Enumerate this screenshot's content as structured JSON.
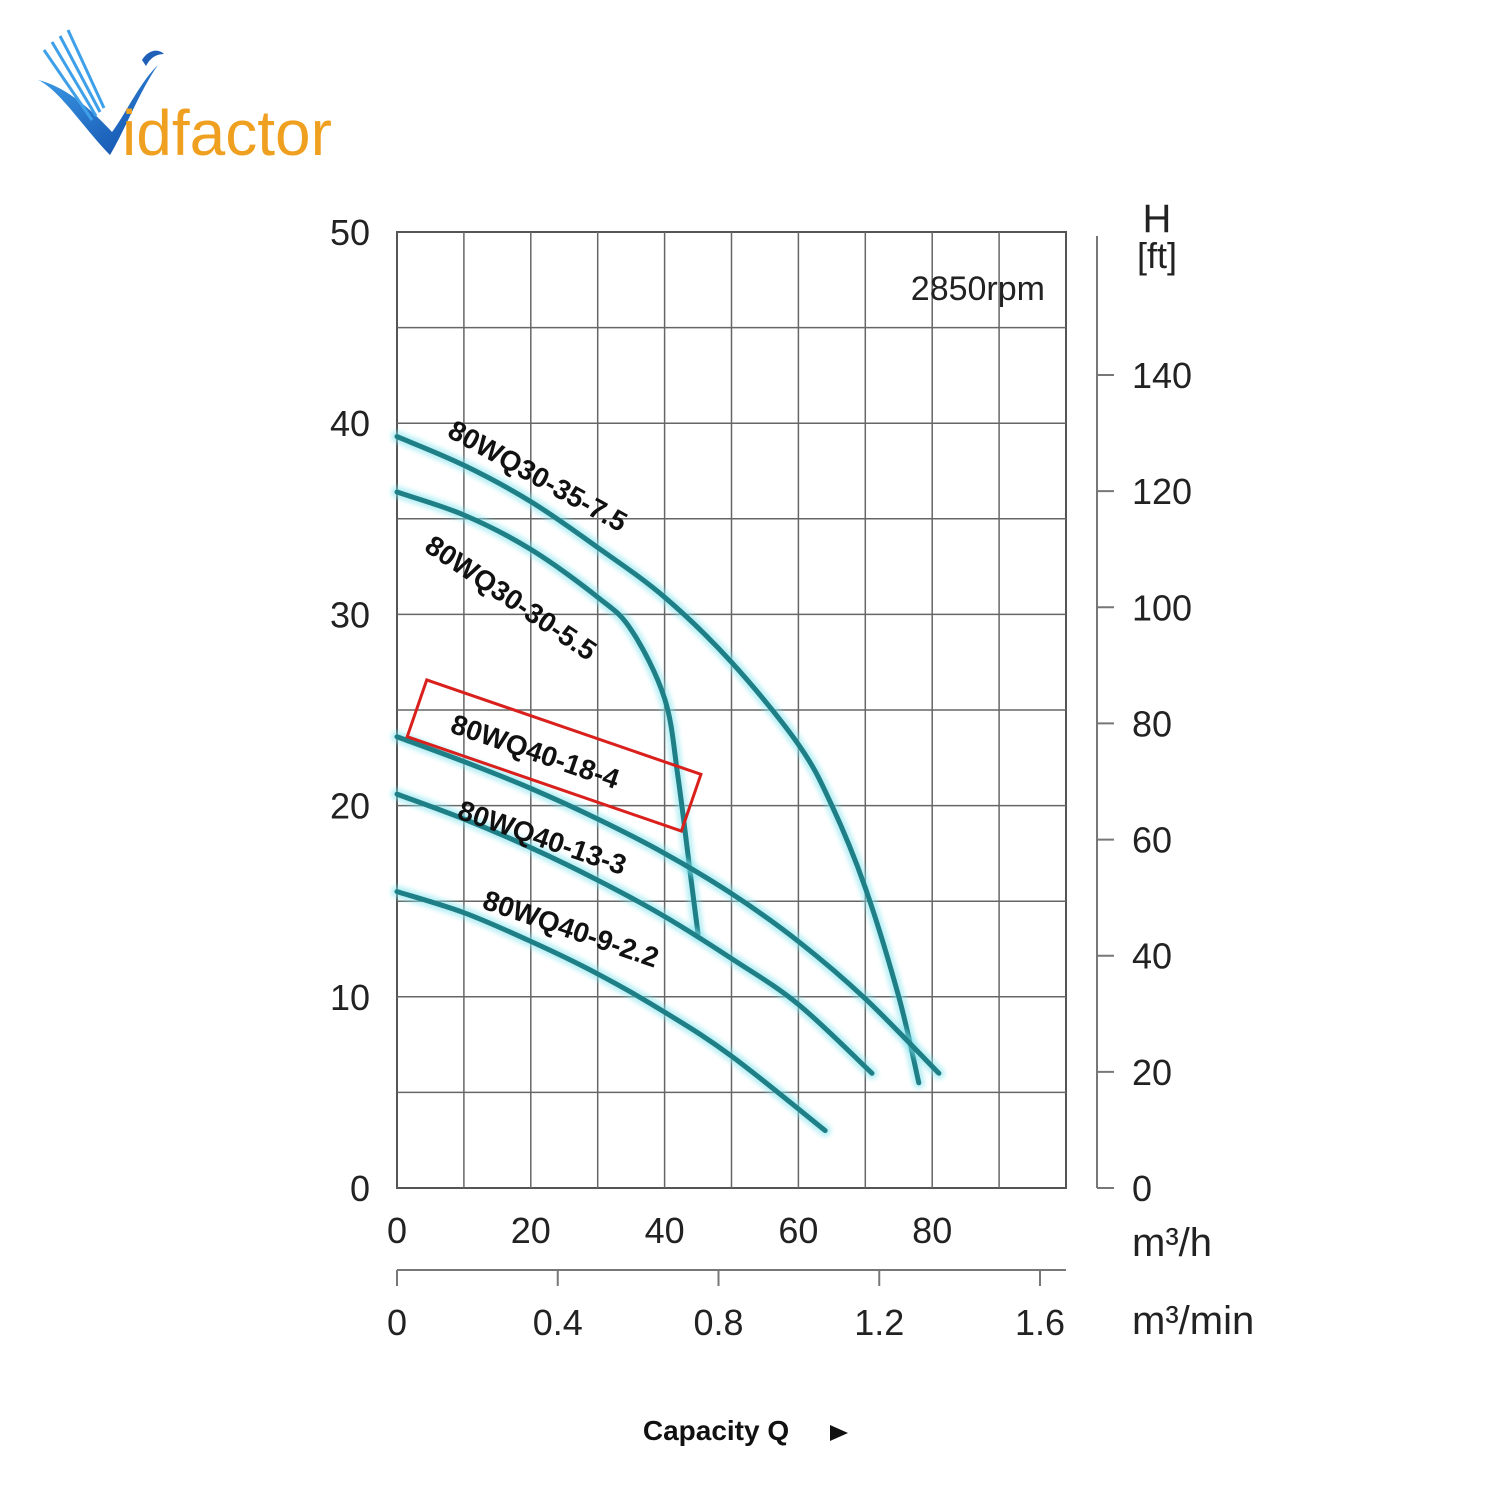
{
  "brand": {
    "logo_text": "idfactor",
    "colors": {
      "blue": "#1f5fb8",
      "orange": "#f0a020"
    }
  },
  "chart_data": {
    "type": "line",
    "annotation": "2850rpm",
    "xlabel": "Capacity Q",
    "x_units": "m³/h",
    "x2_units": "m³/min",
    "ylabel_right_top": "H",
    "ylabel_right_unit": "[ft]",
    "xlim": [
      0,
      100
    ],
    "ylim": [
      0,
      50
    ],
    "x_ticks": [
      "0",
      "20",
      "40",
      "60",
      "80"
    ],
    "x2_ticks": [
      "0",
      "0.4",
      "0.8",
      "1.2",
      "1.6"
    ],
    "y_ticks": [
      "0",
      "10",
      "20",
      "30",
      "40",
      "50"
    ],
    "y_right_ticks": [
      "0",
      "20",
      "40",
      "60",
      "80",
      "100",
      "120",
      "140"
    ],
    "x_tick_values": [
      0,
      20,
      40,
      60,
      80
    ],
    "x2_tick_values": [
      0,
      0.4,
      0.8,
      1.2,
      1.6
    ],
    "y_tick_values": [
      0,
      10,
      20,
      30,
      40,
      50
    ],
    "y_right_tick_values": [
      0,
      20,
      40,
      60,
      80,
      100,
      120,
      140
    ],
    "highlighted_series": "80WQ40-18-4",
    "series": [
      {
        "name": "80WQ30-35-7.5",
        "label": "80WQ30-35-7.5",
        "x": [
          0,
          10,
          20,
          30,
          40,
          50,
          60,
          65,
          70,
          75,
          78
        ],
        "y": [
          39.3,
          37.8,
          35.9,
          33.5,
          30.9,
          27.5,
          23.2,
          20,
          15.7,
          10,
          5.5
        ]
      },
      {
        "name": "80WQ30-30-5.5",
        "label": "80WQ30-30-5.5",
        "x": [
          0,
          10,
          20,
          30,
          35,
          40,
          42,
          44,
          45
        ],
        "y": [
          36.4,
          35.2,
          33.4,
          30.9,
          29.2,
          25.6,
          21.5,
          16,
          13.3
        ]
      },
      {
        "name": "80WQ40-18-4",
        "label": "80WQ40-18-4",
        "x": [
          0,
          10,
          20,
          30,
          40,
          50,
          60,
          70,
          81
        ],
        "y": [
          23.6,
          22.3,
          20.9,
          19.3,
          17.5,
          15.4,
          12.9,
          9.9,
          6
        ]
      },
      {
        "name": "80WQ40-13-3",
        "label": "80WQ40-13-3",
        "x": [
          0,
          10,
          20,
          30,
          40,
          50,
          60,
          71
        ],
        "y": [
          20.6,
          19.3,
          17.8,
          16.1,
          14.2,
          12,
          9.6,
          6
        ]
      },
      {
        "name": "80WQ40-9-2.2",
        "label": "80WQ40-9-2.2",
        "x": [
          0,
          10,
          20,
          30,
          40,
          50,
          64
        ],
        "y": [
          15.5,
          14.4,
          12.9,
          11.2,
          9.2,
          6.9,
          3
        ]
      }
    ]
  }
}
